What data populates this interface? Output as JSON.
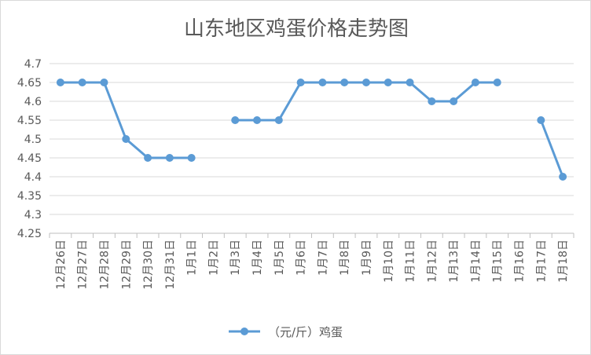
{
  "chart_data": {
    "type": "line",
    "title": "山东地区鸡蛋价格走势图",
    "categories": [
      "12月26日",
      "12月27日",
      "12月28日",
      "12月29日",
      "12月30日",
      "12月31日",
      "1月1日",
      "1月2日",
      "1月3日",
      "1月4日",
      "1月5日",
      "1月6日",
      "1月7日",
      "1月8日",
      "1月9日",
      "1月10日",
      "1月11日",
      "1月12日",
      "1月13日",
      "1月14日",
      "1月15日",
      "1月16日",
      "1月17日",
      "1月18日"
    ],
    "series": [
      {
        "name": "（元/斤）鸡蛋",
        "color": "#5b9bd5",
        "values": [
          4.65,
          4.65,
          4.65,
          4.5,
          4.45,
          4.45,
          4.45,
          null,
          4.55,
          4.55,
          4.55,
          4.65,
          4.65,
          4.65,
          4.65,
          4.65,
          4.65,
          4.6,
          4.6,
          4.65,
          4.65,
          null,
          4.55,
          4.4
        ]
      }
    ],
    "ylim": [
      4.25,
      4.7
    ],
    "yticks": [
      "4.25",
      "4.3",
      "4.35",
      "4.4",
      "4.45",
      "4.5",
      "4.55",
      "4.6",
      "4.65",
      "4.7"
    ],
    "grid": true,
    "legend": "bottom-center"
  }
}
